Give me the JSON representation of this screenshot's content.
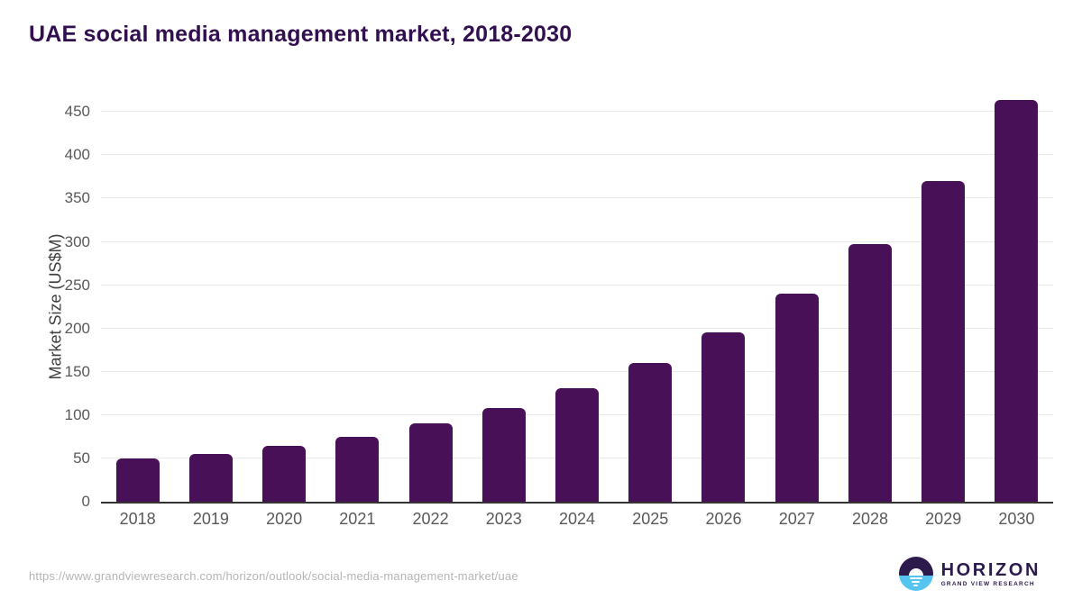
{
  "title": "UAE social media management market, 2018-2030",
  "footer": {
    "source_url": "https://www.grandviewresearch.com/horizon/outlook/social-media-management-market/uae",
    "logo": {
      "brand": "HORIZON",
      "subbrand": "GRAND VIEW RESEARCH"
    }
  },
  "colors": {
    "bar": "#481157",
    "title_text": "#321050",
    "tick_label": "#58595b",
    "axis_title": "#414042",
    "gridline": "#e9e9e9",
    "axis_line": "#333333",
    "url_text": "#b5b5b5",
    "logo_purple": "#2c1a4d",
    "logo_blue": "#57c4ef"
  },
  "icons": {
    "logo_mark": "sunrise-horizon-icon"
  },
  "chart_data": {
    "type": "bar",
    "title": "UAE social media management market, 2018-2030",
    "categories": [
      "2018",
      "2019",
      "2020",
      "2021",
      "2022",
      "2023",
      "2024",
      "2025",
      "2026",
      "2027",
      "2028",
      "2029",
      "2030"
    ],
    "values": [
      50,
      55,
      64,
      75,
      90,
      108,
      131,
      160,
      195,
      240,
      297,
      370,
      464
    ],
    "xlabel": "",
    "ylabel": "Market Size (US$M)",
    "ylim": [
      0,
      470
    ],
    "yticks": [
      0,
      50,
      100,
      150,
      200,
      250,
      300,
      350,
      400,
      450
    ],
    "grid": true,
    "legend_position": "none",
    "bar_color": "#481157"
  }
}
